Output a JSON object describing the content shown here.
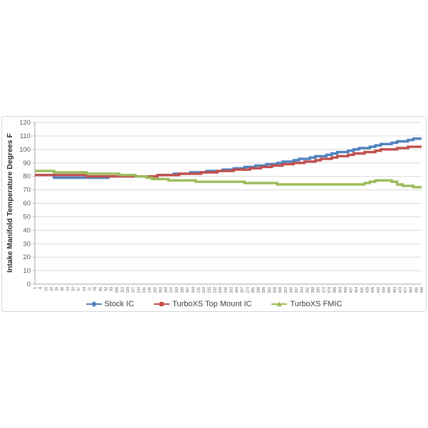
{
  "chart": {
    "y_axis_title": "Intake Manifold Temperature Degrees F",
    "legend": [
      {
        "label": "Stock IC",
        "color": "#4F81BD"
      },
      {
        "label": "TurboXS Top Mount IC",
        "color": "#C0504D"
      },
      {
        "label": "TurboXS FMIC",
        "color": "#9BBB59"
      }
    ]
  },
  "chart_data": {
    "type": "line",
    "title": "",
    "xlabel": "",
    "ylabel": "Intake Manifold Temperature Degrees F",
    "ylim": [
      0,
      120
    ],
    "y_tick_step": 10,
    "grid": true,
    "legend_position": "bottom",
    "categories": [
      1,
      8,
      15,
      22,
      29,
      36,
      43,
      50,
      57,
      64,
      71,
      78,
      85,
      92,
      99,
      106,
      113,
      120,
      127,
      134,
      141,
      148,
      155,
      162,
      169,
      176,
      183,
      190,
      197,
      204,
      211,
      218,
      225,
      232,
      239,
      246,
      253,
      260,
      267,
      274,
      281,
      288,
      295,
      302,
      309,
      316,
      323,
      330,
      337,
      344,
      351,
      358,
      365,
      372,
      379,
      386,
      393,
      400,
      407,
      414,
      421,
      428,
      435,
      442,
      449,
      456,
      463,
      470,
      477,
      484,
      491,
      498
    ],
    "series": [
      {
        "name": "Stock IC",
        "color": "#4F81BD",
        "values": [
          81,
          81,
          81,
          81,
          79,
          79,
          79,
          79,
          79,
          79,
          79,
          79,
          79,
          79,
          80,
          80,
          80,
          80,
          80,
          80,
          80,
          80,
          80,
          81,
          81,
          81,
          82,
          82,
          82,
          83,
          83,
          83,
          84,
          84,
          84,
          85,
          85,
          86,
          86,
          87,
          87,
          88,
          88,
          89,
          89,
          90,
          91,
          91,
          92,
          93,
          93,
          94,
          95,
          95,
          96,
          97,
          98,
          98,
          99,
          100,
          101,
          101,
          102,
          103,
          104,
          104,
          105,
          106,
          106,
          107,
          108,
          108
        ]
      },
      {
        "name": "TurboXS Top Mount IC",
        "color": "#C0504D",
        "values": [
          81,
          81,
          81,
          81,
          81,
          81,
          81,
          81,
          81,
          81,
          80,
          80,
          80,
          80,
          80,
          80,
          80,
          80,
          80,
          80,
          80,
          80,
          80,
          81,
          81,
          81,
          81,
          82,
          82,
          82,
          82,
          83,
          83,
          83,
          84,
          84,
          84,
          85,
          85,
          85,
          86,
          86,
          87,
          87,
          88,
          88,
          89,
          89,
          90,
          90,
          91,
          91,
          92,
          93,
          93,
          94,
          95,
          95,
          96,
          97,
          97,
          98,
          98,
          99,
          100,
          100,
          100,
          101,
          101,
          102,
          102,
          102
        ]
      },
      {
        "name": "TurboXS FMIC",
        "color": "#9BBB59",
        "values": [
          84,
          84,
          84,
          84,
          83,
          83,
          83,
          83,
          83,
          83,
          82,
          82,
          82,
          82,
          82,
          82,
          81,
          81,
          81,
          80,
          80,
          79,
          78,
          78,
          78,
          77,
          77,
          77,
          77,
          77,
          76,
          76,
          76,
          76,
          76,
          76,
          76,
          76,
          76,
          75,
          75,
          75,
          75,
          75,
          75,
          74,
          74,
          74,
          74,
          74,
          74,
          74,
          74,
          74,
          74,
          74,
          74,
          74,
          74,
          74,
          74,
          75,
          76,
          77,
          77,
          77,
          76,
          74,
          73,
          73,
          72,
          72
        ]
      }
    ]
  }
}
